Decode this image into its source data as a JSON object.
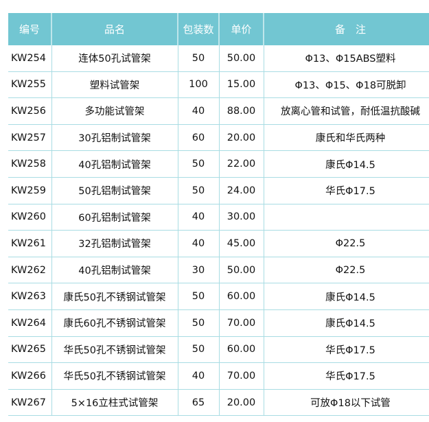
{
  "table": {
    "headers": [
      "编号",
      "品名",
      "包装数",
      "单价",
      "备　注"
    ],
    "rows": [
      [
        "KW254",
        "连体50孔试管架",
        "50",
        "50.00",
        "Φ13、Φ15ABS塑料"
      ],
      [
        "KW255",
        "塑料试管架",
        "100",
        "15.00",
        "Φ13、Φ15、Φ18可脱卸"
      ],
      [
        "KW256",
        "多功能试管架",
        "40",
        "88.00",
        "放离心管和试管，耐低温抗酸碱"
      ],
      [
        "KW257",
        "30孔铝制试管架",
        "60",
        "20.00",
        "康氏和华氏两种"
      ],
      [
        "KW258",
        "40孔铝制试管架",
        "50",
        "22.00",
        "康氏Φ14.5"
      ],
      [
        "KW259",
        "50孔铝制试管架",
        "50",
        "24.00",
        "华氏Φ17.5"
      ],
      [
        "KW260",
        "60孔铝制试管架",
        "40",
        "30.00",
        ""
      ],
      [
        "KW261",
        "32孔铝制试管架",
        "40",
        "45.00",
        "Φ22.5"
      ],
      [
        "KW262",
        "40孔铝制试管架",
        "30",
        "50.00",
        "Φ22.5"
      ],
      [
        "KW263",
        "康氏50孔不锈钢试管架",
        "50",
        "60.00",
        "康氏Φ14.5"
      ],
      [
        "KW264",
        "康氏60孔不锈钢试管架",
        "50",
        "70.00",
        "康氏Φ14.5"
      ],
      [
        "KW265",
        "华氏50孔不锈钢试管架",
        "50",
        "60.00",
        "华氏Φ17.5"
      ],
      [
        "KW266",
        "华氏50孔不锈钢试管架",
        "40",
        "70.00",
        "华氏Φ17.5"
      ],
      [
        "KW267",
        "5×16立柱式试管架",
        "65",
        "20.00",
        "可放Φ18以下试管"
      ]
    ]
  },
  "colors": {
    "header": "#72c6d2",
    "border": "#a8dce3"
  }
}
